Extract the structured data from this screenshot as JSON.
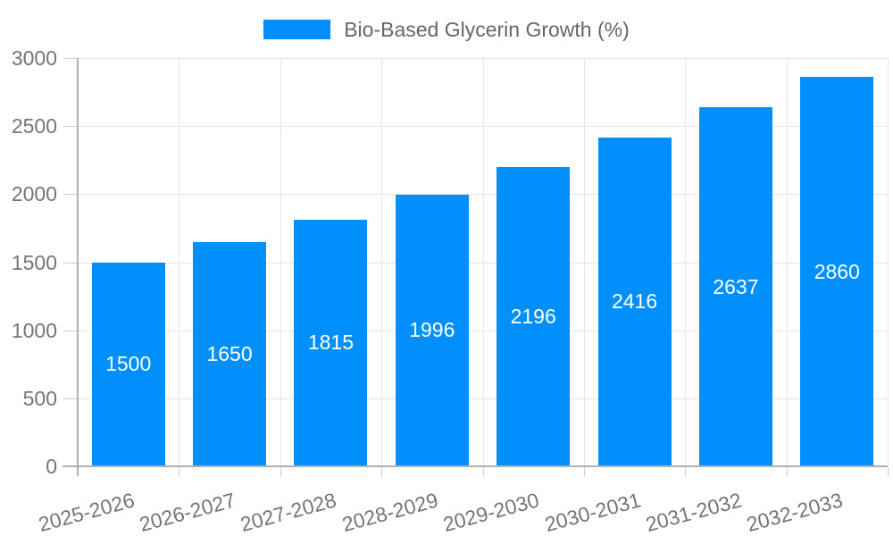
{
  "chart_data": {
    "type": "bar",
    "legend": "Bio-Based Glycerin Growth (%)",
    "legend_position": "top",
    "categories": [
      "2025-2026",
      "2026-2027",
      "2027-2028",
      "2028-2029",
      "2029-2030",
      "2030-2031",
      "2031-2032",
      "2032-2033"
    ],
    "values": [
      1500,
      1650,
      1815,
      1996,
      2196,
      2416,
      2637,
      2860
    ],
    "xlabel": "",
    "ylabel": "",
    "ylim": [
      0,
      3000
    ],
    "yticks": [
      0,
      500,
      1000,
      1500,
      2000,
      2500,
      3000
    ],
    "grid": true,
    "value_labels": "inside-center",
    "colors": {
      "bar": "#008FFB",
      "grid": "#e6e6e6",
      "axis_line": "#b0b0b0",
      "tick": "#cccccc",
      "axis_text": "#757575",
      "legend_text": "#666666",
      "value_text": "#ffffff",
      "background": "#ffffff"
    }
  }
}
